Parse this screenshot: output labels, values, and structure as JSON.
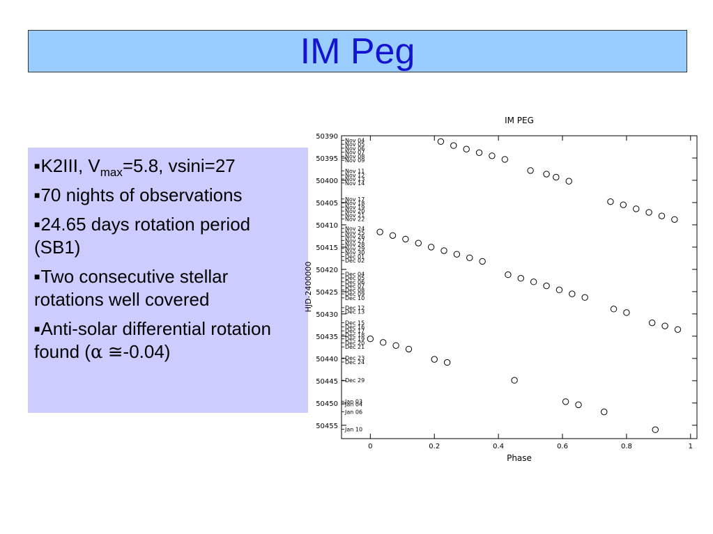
{
  "header": {
    "title": "IM Peg"
  },
  "bullets": {
    "b1": {
      "pre": "K2III, V",
      "sub": "max",
      "post": "=5.8, vsini=27"
    },
    "b2": "70 nights of observations",
    "b3": "24.65 days rotation period (SB1)",
    "b4": "Two consecutive stellar rotations well covered",
    "b5": {
      "pre": "Anti-solar differential rotation found (",
      "alpha": "α",
      "approx": "≅",
      "post": "-0.04)"
    }
  },
  "chart_data": {
    "type": "scatter",
    "title": "IM PEG",
    "xlabel": "Phase",
    "ylabel": "HJD-2400000",
    "xlim": [
      -0.09,
      1.02
    ],
    "ylim": [
      50390,
      50458
    ],
    "xticks": [
      0,
      0.2,
      0.4,
      0.6,
      0.8,
      1
    ],
    "xtick_labels": [
      "0",
      "0.2",
      "0.4",
      "0.6",
      "0.8",
      "1"
    ],
    "yticks": [
      50390,
      50395,
      50400,
      50405,
      50410,
      50415,
      50420,
      50425,
      50430,
      50435,
      50440,
      50445,
      50450,
      50455
    ],
    "ytick_labels": [
      "50390",
      "50395",
      "50400",
      "50405",
      "50410",
      "50415",
      "50420",
      "50425",
      "50430",
      "50435",
      "50440",
      "50445",
      "50450",
      "50455"
    ],
    "date_labels": [
      {
        "label": "Nov 04",
        "y": 50391.0
      },
      {
        "label": "Nov 05",
        "y": 50391.9
      },
      {
        "label": "Nov 06",
        "y": 50392.8
      },
      {
        "label": "Nov 07",
        "y": 50393.7
      },
      {
        "label": "Nov 08",
        "y": 50394.6
      },
      {
        "label": "Nov 09",
        "y": 50395.5
      },
      {
        "label": "Nov 11",
        "y": 50397.9
      },
      {
        "label": "Nov 12",
        "y": 50398.8
      },
      {
        "label": "Nov 13",
        "y": 50399.7
      },
      {
        "label": "Nov 14",
        "y": 50400.6
      },
      {
        "label": "Nov 17",
        "y": 50404.2
      },
      {
        "label": "Nov 18",
        "y": 50405.1
      },
      {
        "label": "Nov 19",
        "y": 50406.0
      },
      {
        "label": "Nov 20",
        "y": 50406.9
      },
      {
        "label": "Nov 21",
        "y": 50407.8
      },
      {
        "label": "Nov 22",
        "y": 50408.7
      },
      {
        "label": "Nov 24",
        "y": 50410.8
      },
      {
        "label": "Nov 25",
        "y": 50411.7
      },
      {
        "label": "Nov 26",
        "y": 50412.6
      },
      {
        "label": "Nov 27",
        "y": 50413.5
      },
      {
        "label": "Nov 28",
        "y": 50414.4
      },
      {
        "label": "Nov 29",
        "y": 50415.3
      },
      {
        "label": "Nov 30",
        "y": 50416.2
      },
      {
        "label": "Dec 01",
        "y": 50417.1
      },
      {
        "label": "Dec 02",
        "y": 50418.0
      },
      {
        "label": "Dec 04",
        "y": 50421.0
      },
      {
        "label": "Dec 05",
        "y": 50421.9
      },
      {
        "label": "Dec 06",
        "y": 50422.8
      },
      {
        "label": "Dec 07",
        "y": 50423.7
      },
      {
        "label": "Dec 08",
        "y": 50424.6
      },
      {
        "label": "Dec 09",
        "y": 50425.5
      },
      {
        "label": "Dec 10",
        "y": 50426.4
      },
      {
        "label": "Dec 12",
        "y": 50428.6
      },
      {
        "label": "Dec 13",
        "y": 50429.5
      },
      {
        "label": "Dec 15",
        "y": 50432.0
      },
      {
        "label": "Dec 16",
        "y": 50432.9
      },
      {
        "label": "Dec 17",
        "y": 50433.8
      },
      {
        "label": "Dec 18",
        "y": 50434.7
      },
      {
        "label": "Dec 19",
        "y": 50435.6
      },
      {
        "label": "Dec 20",
        "y": 50436.5
      },
      {
        "label": "Dec 21",
        "y": 50437.4
      },
      {
        "label": "Dec 23",
        "y": 50439.9
      },
      {
        "label": "Dec 24",
        "y": 50440.8
      },
      {
        "label": "Dec 29",
        "y": 50444.9
      },
      {
        "label": "Jan 03",
        "y": 50449.6
      },
      {
        "label": "Jan 04",
        "y": 50450.3
      },
      {
        "label": "Jan 06",
        "y": 50452.0
      },
      {
        "label": "Jan 10",
        "y": 50455.9
      }
    ],
    "series": [
      {
        "points": [
          {
            "x": 0.22,
            "y": 50391.3
          },
          {
            "x": 0.26,
            "y": 50392.2
          },
          {
            "x": 0.3,
            "y": 50393.0
          },
          {
            "x": 0.34,
            "y": 50393.8
          },
          {
            "x": 0.38,
            "y": 50394.5
          },
          {
            "x": 0.42,
            "y": 50395.3
          },
          {
            "x": 0.5,
            "y": 50397.8
          },
          {
            "x": 0.55,
            "y": 50398.6
          },
          {
            "x": 0.58,
            "y": 50399.3
          },
          {
            "x": 0.62,
            "y": 50400.2
          },
          {
            "x": 0.75,
            "y": 50404.8
          },
          {
            "x": 0.79,
            "y": 50405.5
          },
          {
            "x": 0.83,
            "y": 50406.4
          },
          {
            "x": 0.87,
            "y": 50407.2
          },
          {
            "x": 0.91,
            "y": 50408.0
          },
          {
            "x": 0.95,
            "y": 50408.8
          },
          {
            "x": 0.03,
            "y": 50411.6
          },
          {
            "x": 0.07,
            "y": 50412.4
          },
          {
            "x": 0.11,
            "y": 50413.2
          },
          {
            "x": 0.15,
            "y": 50414.1
          },
          {
            "x": 0.19,
            "y": 50415.0
          },
          {
            "x": 0.23,
            "y": 50415.8
          },
          {
            "x": 0.27,
            "y": 50416.6
          },
          {
            "x": 0.31,
            "y": 50417.4
          },
          {
            "x": 0.35,
            "y": 50418.2
          },
          {
            "x": 0.43,
            "y": 50421.2
          },
          {
            "x": 0.47,
            "y": 50422.0
          },
          {
            "x": 0.51,
            "y": 50422.8
          },
          {
            "x": 0.55,
            "y": 50423.7
          },
          {
            "x": 0.59,
            "y": 50424.6
          },
          {
            "x": 0.63,
            "y": 50425.5
          },
          {
            "x": 0.67,
            "y": 50426.3
          },
          {
            "x": 0.76,
            "y": 50428.9
          },
          {
            "x": 0.8,
            "y": 50429.7
          },
          {
            "x": 0.88,
            "y": 50432.0
          },
          {
            "x": 0.92,
            "y": 50432.7
          },
          {
            "x": 0.96,
            "y": 50433.5
          },
          {
            "x": 0.0,
            "y": 50435.6
          },
          {
            "x": 0.04,
            "y": 50436.4
          },
          {
            "x": 0.08,
            "y": 50437.1
          },
          {
            "x": 0.12,
            "y": 50437.9
          },
          {
            "x": 0.2,
            "y": 50440.2
          },
          {
            "x": 0.24,
            "y": 50440.9
          },
          {
            "x": 0.45,
            "y": 50444.9
          },
          {
            "x": 0.61,
            "y": 50449.7
          },
          {
            "x": 0.65,
            "y": 50450.4
          },
          {
            "x": 0.73,
            "y": 50452.0
          },
          {
            "x": 0.89,
            "y": 50456.0
          }
        ]
      }
    ],
    "grid": false,
    "marker": "open-circle",
    "colors": {
      "marker": "#000000",
      "axis": "#000000"
    }
  }
}
